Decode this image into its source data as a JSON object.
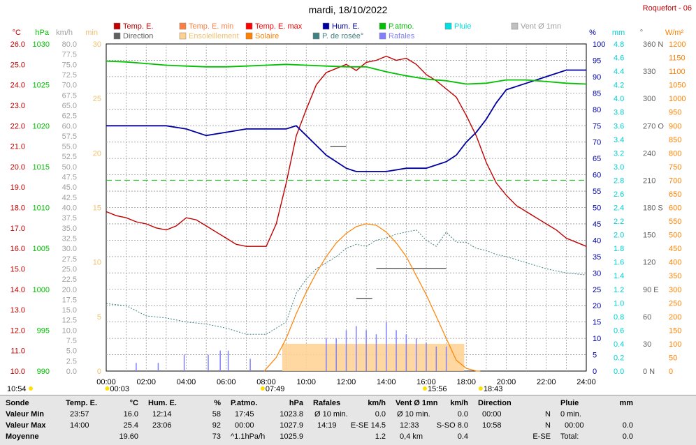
{
  "title": "mardi, 18/10/2022",
  "station": "Roquefort - 06",
  "colors": {
    "temp": "#c00000",
    "temp_min": "#ff8040",
    "temp_max": "#ff0000",
    "humidity": "#0000a0",
    "pressure": "#00c000",
    "rain": "#00d0d0",
    "wind": "#a0a0a0",
    "dewpoint": "#408080",
    "gust": "#8080ff",
    "solar": "#ff8000",
    "sunshine": "#ffd090",
    "direction": "#606060"
  },
  "legend": [
    {
      "label": "Temp. E.",
      "color": "#c00000"
    },
    {
      "label": "Temp. E. min",
      "color": "#ff8040"
    },
    {
      "label": "Temp. E. max",
      "color": "#ff0000"
    },
    {
      "label": "Hum. E.",
      "color": "#0000a0"
    },
    {
      "label": "P.atmo.",
      "color": "#00c000"
    },
    {
      "label": "Pluie",
      "color": "#00e0e0"
    },
    {
      "label": "Vent Ø 1mn",
      "color": "#c0c0c0"
    },
    {
      "label": "Direction",
      "color": "#606060"
    },
    {
      "label": "Ensoleillement",
      "color": "#ffd090"
    },
    {
      "label": "Solaire",
      "color": "#ff8000"
    },
    {
      "label": "P. de rosée°",
      "color": "#408080"
    },
    {
      "label": "Rafales",
      "color": "#8080ff"
    }
  ],
  "chart_data": {
    "type": "line",
    "x_ticks": [
      "00:00",
      "02:00",
      "04:00",
      "06:00",
      "08:00",
      "10:00",
      "12:00",
      "14:00",
      "16:00",
      "18:00",
      "20:00",
      "22:00",
      "24:00"
    ],
    "x_range_hours": [
      0,
      24
    ],
    "grid": true,
    "axes": {
      "temp_c": {
        "unit": "°C",
        "ticks": [
          "26.0",
          "25.5",
          "25.0",
          "24.5",
          "24.0",
          "23.5",
          "23.0",
          "22.5",
          "22.0",
          "21.5",
          "21.0",
          "20.5",
          "20.0",
          "19.5",
          "19.0",
          "18.5",
          "18.0",
          "17.5",
          "17.0",
          "16.5",
          "16.0",
          "15.5",
          "15.0",
          "14.5",
          "14.0",
          "13.5",
          "13.0",
          "12.5",
          "12.0",
          "11.5",
          "11.0",
          "10.5",
          "10.0"
        ],
        "shown": [
          "26.0",
          "25.0",
          "24.0",
          "23.0",
          "22.0",
          "21.0",
          "20.0",
          "19.0",
          "18.0",
          "17.0",
          "16.0",
          "15.0",
          "14.0",
          "13.0",
          "12.0",
          "11.0",
          "10.0"
        ],
        "range": [
          10,
          26
        ]
      },
      "pressure_hpa": {
        "unit": "hPa",
        "ticks": [
          "1030",
          "1025",
          "1020",
          "1015",
          "1010",
          "1005",
          "1000",
          "995",
          "990"
        ],
        "range": [
          990,
          1030
        ]
      },
      "wind_kmh": {
        "unit": "km/h",
        "ticks": [
          "80.0",
          "77.5",
          "75.0",
          "72.5",
          "70.0",
          "67.5",
          "65.0",
          "62.5",
          "60.0",
          "57.5",
          "55.0",
          "52.5",
          "50.0",
          "47.5",
          "45.0",
          "42.5",
          "40.0",
          "37.5",
          "35.0",
          "32.5",
          "30.0",
          "27.5",
          "25.0",
          "22.5",
          "20.0",
          "17.5",
          "15.0",
          "12.5",
          "10.0",
          "7.5",
          "5.0",
          "2.5",
          "0.0"
        ],
        "range": [
          0,
          80
        ]
      },
      "sunshine_min": {
        "unit": "min",
        "ticks": [
          "30",
          "25",
          "20",
          "15",
          "10",
          "5",
          "0"
        ],
        "range": [
          0,
          30
        ]
      },
      "humidity_pct": {
        "unit": "%",
        "ticks": [
          "100",
          "95",
          "90",
          "85",
          "80",
          "75",
          "70",
          "65",
          "60",
          "55",
          "50",
          "45",
          "40",
          "35",
          "30",
          "25",
          "20",
          "15",
          "10",
          "5",
          "0"
        ],
        "range": [
          0,
          100
        ]
      },
      "rain_mm": {
        "unit": "mm",
        "ticks": [
          "4.8",
          "4.6",
          "4.4",
          "4.2",
          "4.0",
          "3.8",
          "3.6",
          "3.4",
          "3.2",
          "3.0",
          "2.8",
          "2.6",
          "2.4",
          "2.2",
          "2.0",
          "1.8",
          "1.6",
          "1.4",
          "1.2",
          "1.0",
          "0.8",
          "0.6",
          "0.4",
          "0.2",
          "0.0"
        ],
        "range": [
          0,
          5
        ]
      },
      "direction_deg": {
        "unit": "°",
        "ticks": [
          "360 N",
          "330",
          "300",
          "270 O",
          "240",
          "210",
          "180 S",
          "150",
          "120",
          "90 E",
          "60",
          "30",
          "0 N"
        ],
        "range": [
          0,
          360
        ]
      },
      "solar_wm2": {
        "unit": "W/m²",
        "ticks": [
          "1200",
          "1150",
          "1100",
          "1050",
          "1000",
          "950",
          "900",
          "850",
          "800",
          "750",
          "700",
          "650",
          "600",
          "550",
          "500",
          "450",
          "400",
          "350",
          "300",
          "250",
          "200",
          "150",
          "100",
          "50",
          "0"
        ],
        "range": [
          0,
          1200
        ]
      }
    },
    "series": [
      {
        "name": "Temp. E.",
        "axis": "temp_c",
        "x": [
          0,
          0.5,
          1,
          1.5,
          2,
          2.5,
          3,
          3.5,
          4,
          4.5,
          5,
          5.5,
          6,
          6.5,
          7,
          7.5,
          8,
          8.5,
          9,
          9.5,
          10,
          10.5,
          11,
          11.5,
          12,
          12.5,
          13,
          13.5,
          14,
          14.5,
          15,
          15.5,
          16,
          16.5,
          17,
          17.5,
          18,
          18.5,
          19,
          19.5,
          20,
          20.5,
          21,
          21.5,
          22,
          22.5,
          23,
          23.5,
          24
        ],
        "y": [
          17.8,
          17.6,
          17.5,
          17.3,
          17.2,
          17.0,
          16.9,
          17.1,
          17.5,
          17.4,
          17.1,
          16.8,
          16.5,
          16.2,
          16.1,
          16.1,
          16.1,
          17.2,
          19.2,
          21.5,
          22.8,
          24.0,
          24.6,
          24.8,
          25.0,
          24.7,
          25.1,
          25.2,
          25.4,
          25.2,
          25.3,
          25.0,
          24.5,
          24.2,
          23.8,
          23.4,
          22.5,
          21.5,
          20.2,
          19.2,
          18.6,
          18.1,
          17.8,
          17.5,
          17.2,
          16.9,
          16.5,
          16.3,
          16.1
        ]
      },
      {
        "name": "Hum. E.",
        "axis": "humidity_pct",
        "x": [
          0,
          1,
          2,
          3,
          4,
          5,
          6,
          7,
          8,
          9,
          9.5,
          10,
          10.5,
          11,
          12,
          12.5,
          13,
          14,
          15,
          16,
          16.5,
          17,
          17.5,
          18,
          18.5,
          19,
          19.5,
          20,
          21,
          22,
          23,
          24
        ],
        "y": [
          75,
          75,
          75,
          75,
          74,
          72,
          73,
          74,
          74,
          74,
          75,
          72,
          69,
          66,
          62,
          61,
          61,
          61,
          62,
          62,
          63,
          64,
          66,
          70,
          73,
          77,
          82,
          86,
          88,
          90,
          92,
          92
        ]
      },
      {
        "name": "P.atmo.",
        "axis": "pressure_hpa",
        "x": [
          0,
          1,
          2,
          3,
          4,
          5,
          6,
          7,
          8,
          9,
          10,
          11,
          12,
          13,
          14,
          15,
          16,
          17,
          18,
          19,
          20,
          21,
          22,
          23,
          24
        ],
        "y": [
          1027.9,
          1027.8,
          1027.6,
          1027.4,
          1027.3,
          1027.2,
          1027.2,
          1027.3,
          1027.4,
          1027.5,
          1027.4,
          1027.3,
          1027.2,
          1027.2,
          1026.6,
          1026.1,
          1025.7,
          1025.5,
          1025.1,
          1025.2,
          1025.6,
          1025.6,
          1025.4,
          1025.2,
          1025.1
        ]
      },
      {
        "name": "P. de rosée°",
        "axis": "temp_c",
        "x": [
          0,
          1,
          2,
          3,
          4,
          5,
          6,
          7,
          8,
          9,
          9.5,
          10,
          10.5,
          11,
          11.5,
          12,
          12.5,
          13,
          13.5,
          14,
          14.5,
          15,
          15.5,
          16,
          16.5,
          17,
          17.5,
          18,
          18.5,
          19,
          19.5,
          20,
          21,
          22,
          23,
          24
        ],
        "y": [
          13.3,
          13.2,
          12.7,
          12.6,
          12.4,
          12.3,
          12.1,
          11.8,
          11.8,
          12.4,
          13.8,
          14.5,
          15.0,
          15.3,
          15.6,
          16.0,
          16.2,
          16.1,
          16.4,
          16.5,
          16.7,
          16.8,
          16.9,
          16.4,
          16.1,
          16.8,
          16.3,
          16.3,
          16.0,
          15.9,
          15.7,
          15.6,
          15.3,
          15.0,
          14.8,
          14.7
        ]
      },
      {
        "name": "Solaire",
        "axis": "solar_wm2",
        "x": [
          7.9,
          8.5,
          9,
          9.5,
          10,
          10.5,
          11,
          11.5,
          12,
          12.5,
          13,
          13.5,
          14,
          14.5,
          15,
          15.5,
          16,
          16.5,
          17,
          17.5,
          18,
          18.5,
          18.7
        ],
        "y": [
          0,
          50,
          120,
          210,
          290,
          360,
          420,
          470,
          505,
          530,
          540,
          535,
          510,
          470,
          420,
          350,
          280,
          200,
          120,
          40,
          10,
          0,
          0
        ]
      },
      {
        "name": "Rafales",
        "axis": "wind_kmh",
        "note": "bars",
        "x": [
          1.5,
          2.6,
          3.9,
          5.1,
          5.7,
          6.1,
          7.2,
          11,
          11.5,
          12,
          12.5,
          13,
          13.5,
          14,
          14.5,
          15,
          15.5,
          16,
          16.5,
          17
        ],
        "y": [
          2,
          2,
          4,
          4,
          5,
          5,
          3,
          8,
          8,
          10,
          11,
          10,
          9,
          12,
          10,
          9,
          8,
          7,
          6,
          6
        ]
      }
    ],
    "dashed_line": {
      "axis": "solar_wm2",
      "value": 700,
      "color": "#00c000"
    },
    "direction_marks": [
      {
        "x0": 11.2,
        "x1": 12,
        "deg": 247
      },
      {
        "x0": 12.5,
        "x1": 13.3,
        "deg": 80
      },
      {
        "x0": 13.5,
        "x1": 17,
        "deg": 113
      }
    ],
    "sunshine_bars": {
      "x0": 8.8,
      "x1": 17.9,
      "value": 2.5
    },
    "x_markers": [
      {
        "label": "10:54",
        "pos": "left"
      },
      {
        "label": "00:03",
        "hour": 0.05
      },
      {
        "label": "07:49",
        "hour": 7.82
      },
      {
        "label": "15:56",
        "hour": 15.93
      },
      {
        "label": "18:43",
        "hour": 18.72
      }
    ]
  },
  "stats": {
    "headers": {
      "sonde": "Sonde",
      "temp": "Temp. E.",
      "temp_unit": "°C",
      "hum": "Hum. E.",
      "hum_unit": "%",
      "press": "P.atmo.",
      "press_unit": "hPa",
      "gust": "Rafales",
      "gust_unit": "km/h",
      "wind": "Vent Ø 1mn",
      "wind_unit": "km/h",
      "dir": "Direction",
      "rain": "Pluie",
      "rain_unit": "mm"
    },
    "rows": [
      "Valeur Min",
      "Valeur Max",
      "Moyenne"
    ],
    "temp": [
      [
        "23:57",
        "16.0"
      ],
      [
        "14:00",
        "25.4"
      ],
      [
        "",
        "19.60"
      ]
    ],
    "hum": [
      [
        "12:14",
        "58"
      ],
      [
        "23:06",
        "92"
      ],
      [
        "",
        "73"
      ]
    ],
    "press": [
      [
        "17:45",
        "1023.8"
      ],
      [
        "00:00",
        "1027.9"
      ],
      [
        "^1.1hPa/h",
        "1025.9"
      ]
    ],
    "gust": [
      [
        "Ø 10 min.",
        "0.0"
      ],
      [
        "14:19",
        "E-SE 14.5"
      ],
      [
        "",
        "1.2"
      ]
    ],
    "wind": [
      [
        "Ø 10 min.",
        "0.0"
      ],
      [
        "12:33",
        "S-SO 8.0"
      ],
      [
        "0,4 km",
        "0.4"
      ]
    ],
    "dir": [
      [
        "00:00",
        "N"
      ],
      [
        "10:58",
        "N"
      ],
      [
        "",
        "E-SE"
      ]
    ],
    "rain": [
      [
        "0 min.",
        ""
      ],
      [
        "00:00",
        "0.0"
      ],
      [
        "Total:",
        "0.0"
      ]
    ]
  }
}
